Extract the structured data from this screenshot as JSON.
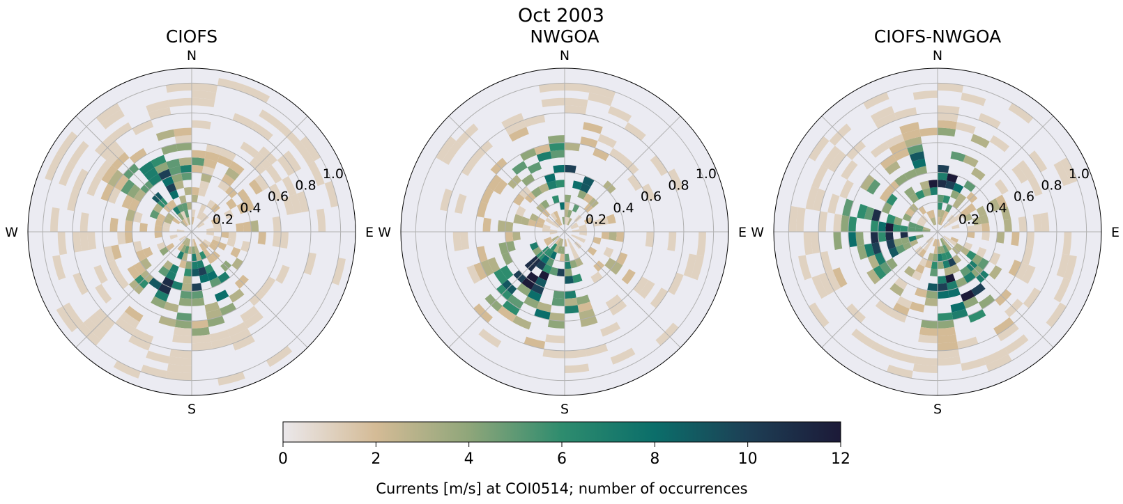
{
  "figure_title": "Oct 2003",
  "chart_data": [
    {
      "type": "polar-histogram",
      "title": "CIOFS",
      "compass": [
        "N",
        "E",
        "S",
        "W"
      ],
      "r_ticks": [
        "0.2",
        "0.4",
        "0.6",
        "0.8",
        "1.0"
      ],
      "r_tick_values": [
        0.2,
        0.4,
        0.6,
        0.8,
        1.0
      ],
      "r_max": 1.1,
      "direction_bin_deg": 10,
      "speed_bin_ms": 0.05,
      "seed": 17,
      "max_speed": 1.05,
      "dominant_dirs_deg": [
        330,
        200,
        170
      ],
      "peak_count": 10,
      "coverage": 0.78
    },
    {
      "type": "polar-histogram",
      "title": "NWGOA",
      "compass": [
        "N",
        "E",
        "S",
        "W"
      ],
      "r_ticks": [
        "0.2",
        "0.4",
        "0.6",
        "0.8",
        "1.0"
      ],
      "r_tick_values": [
        0.2,
        0.4,
        0.6,
        0.8,
        1.0
      ],
      "r_max": 1.1,
      "direction_bin_deg": 10,
      "speed_bin_ms": 0.05,
      "seed": 42,
      "max_speed": 1.0,
      "dominant_dirs_deg": [
        200,
        0,
        220
      ],
      "peak_count": 12,
      "coverage": 0.6
    },
    {
      "type": "polar-histogram",
      "title": "CIOFS-NWGOA",
      "compass": [
        "N",
        "E",
        "S",
        "W"
      ],
      "r_ticks": [
        "0.2",
        "0.4",
        "0.6",
        "0.8",
        "1.0"
      ],
      "r_tick_values": [
        0.2,
        0.4,
        0.6,
        0.8,
        1.0
      ],
      "r_max": 1.1,
      "direction_bin_deg": 10,
      "speed_bin_ms": 0.05,
      "seed": 99,
      "max_speed": 1.0,
      "dominant_dirs_deg": [
        0,
        160,
        270
      ],
      "peak_count": 12,
      "coverage": 0.7
    }
  ],
  "colorbar": {
    "label": "Currents [m/s] at COI0514; number of occurrences",
    "min": 0,
    "max": 12,
    "ticks": [
      "0",
      "2",
      "4",
      "6",
      "8",
      "10",
      "12"
    ],
    "tick_values": [
      0,
      2,
      4,
      6,
      8,
      10,
      12
    ],
    "colors": [
      "#ebe8eb",
      "#d4bb96",
      "#8fa67a",
      "#2e8c6e",
      "#0b6e6a",
      "#1d3f55",
      "#1c1a38"
    ]
  },
  "colors": {
    "polar_background": "#ebebf2",
    "grid": "#b0b0b0",
    "axis": "#000000"
  }
}
